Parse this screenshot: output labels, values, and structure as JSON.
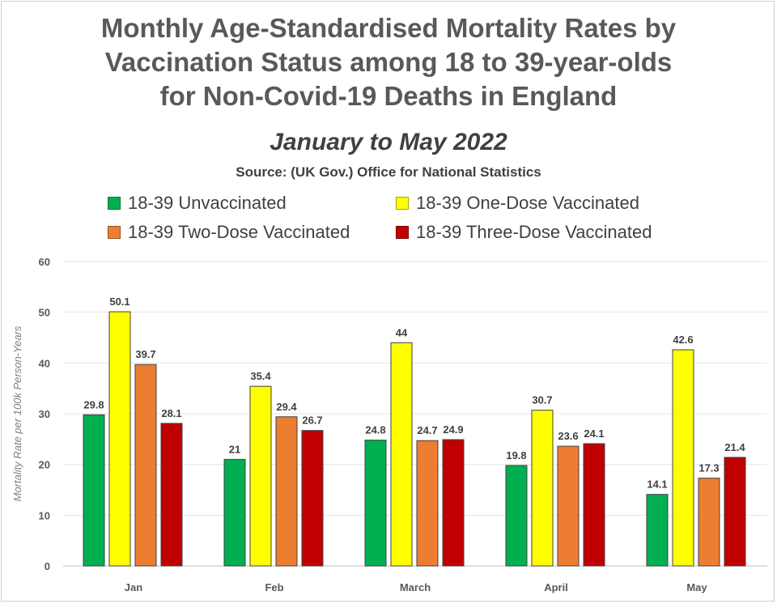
{
  "title_lines": [
    "Monthly Age-Standardised Mortality Rates by",
    "Vaccination Status among 18 to 39-year-olds",
    "for Non-Covid-19 Deaths in England"
  ],
  "subtitle": "January to May 2022",
  "source": "Source: (UK Gov.) Office for National Statistics",
  "chart_data": {
    "type": "bar",
    "ylabel": "Mortality Rate per 100k Person-Years",
    "xlabel": "",
    "ylim": [
      0,
      60
    ],
    "yticks": [
      0,
      10,
      20,
      30,
      40,
      50,
      60
    ],
    "grid": true,
    "legend_position": "top",
    "categories": [
      "Jan",
      "Feb",
      "March",
      "April",
      "May"
    ],
    "series": [
      {
        "name": "18-39 Unvaccinated",
        "color": "#00b050",
        "values": [
          29.8,
          21,
          24.8,
          19.8,
          14.1
        ]
      },
      {
        "name": "18-39 One-Dose Vaccinated",
        "color": "#ffff00",
        "values": [
          50.1,
          35.4,
          44,
          30.7,
          42.6
        ]
      },
      {
        "name": "18-39 Two-Dose Vaccinated",
        "color": "#ed7d31",
        "values": [
          39.7,
          29.4,
          24.7,
          23.6,
          17.3
        ]
      },
      {
        "name": "18-39 Three-Dose Vaccinated",
        "color": "#c00000",
        "values": [
          28.1,
          26.7,
          24.9,
          24.1,
          21.4
        ]
      }
    ]
  }
}
